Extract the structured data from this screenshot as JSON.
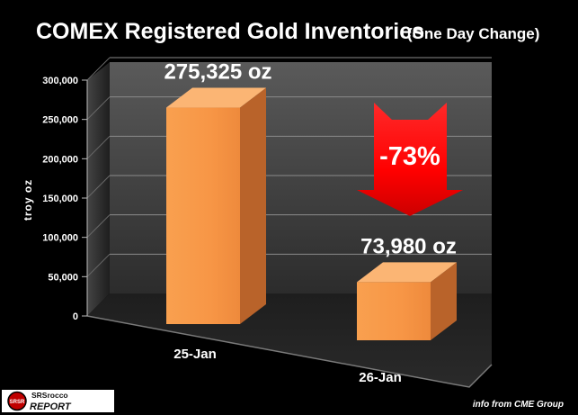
{
  "chart_data": {
    "type": "bar",
    "title": "COMEX Registered Gold Inventories",
    "subtitle": "(One Day Change)",
    "ylabel": "troy oz",
    "xlabel": "",
    "categories": [
      "25-Jan",
      "26-Jan"
    ],
    "values": [
      275325,
      73980
    ],
    "data_labels": [
      "275,325 oz",
      "73,980 oz"
    ],
    "yticks": [
      "0",
      "50,000",
      "100,000",
      "150,000",
      "200,000",
      "250,000",
      "300,000"
    ],
    "ylim": [
      0,
      300000
    ],
    "grid": true,
    "style": "3d",
    "bar_color": "#f79646",
    "annotation": {
      "text": "-73%",
      "shape": "down-arrow",
      "color": "#ff0000"
    }
  },
  "source_note": "info from CME Group",
  "logo": {
    "top_text": "SRSrocco",
    "bottom_text": "REPORT",
    "badge_text": "SRSR",
    "name": "srsrocco-report-logo"
  }
}
